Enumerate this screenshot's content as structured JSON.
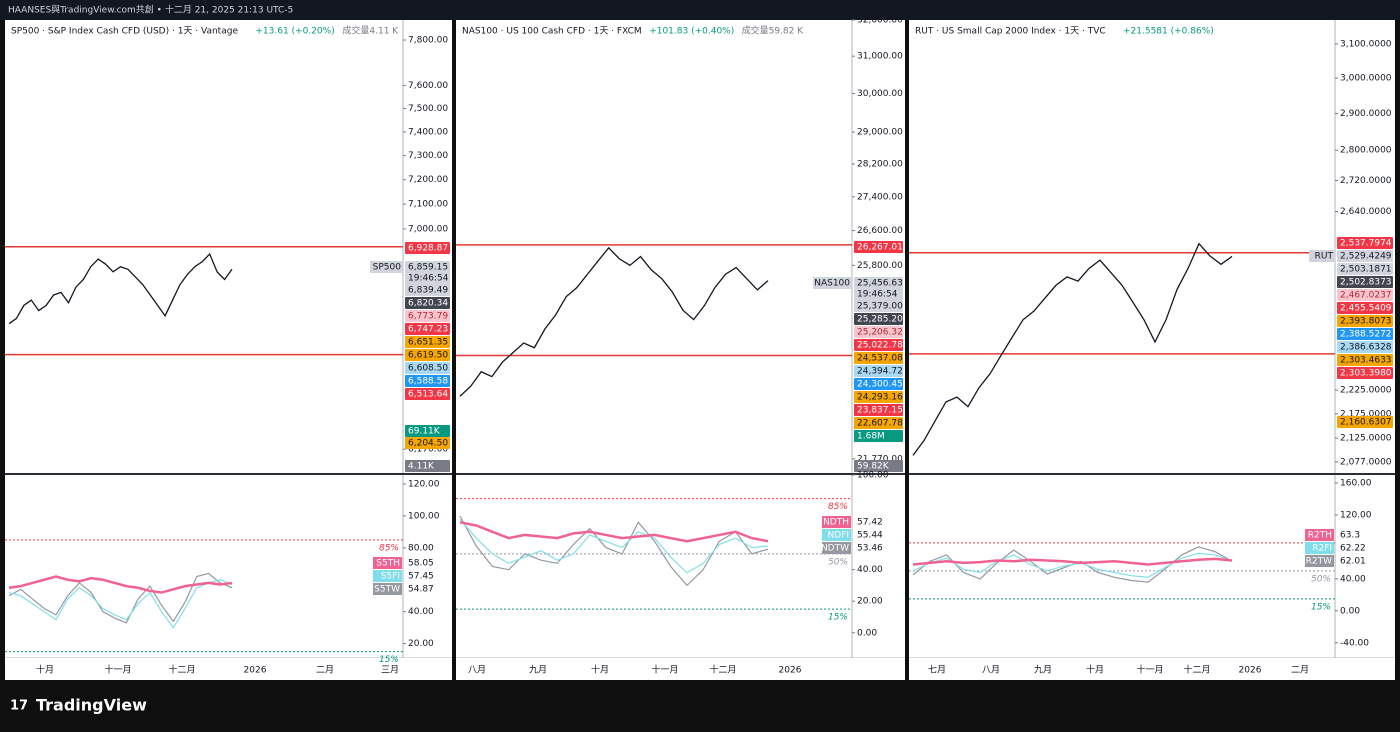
{
  "top_bar": "HAANSES與TradingView.com共創 • 十二月 21, 2025 21:13 UTC-5",
  "footer": "TradingView",
  "panels": [
    {
      "symbol": "SP500 · S&P Index Cash CFD (USD) · 1天 · Vantage",
      "change": "+13.61 (+0.20%)",
      "volume": "成交量4.11 K",
      "tag": "SP500",
      "log_scale": true,
      "ylim": [
        6090,
        7890
      ],
      "yticks": [
        {
          "value": 7800,
          "label": "7,800.00"
        },
        {
          "value": 7600,
          "label": "7,600.00"
        },
        {
          "value": 7500,
          "label": "7,500.00"
        },
        {
          "value": 7400,
          "label": "7,400.00"
        },
        {
          "value": 7300,
          "label": "7,300.00"
        },
        {
          "value": 7200,
          "label": "7,200.00"
        },
        {
          "value": 7100,
          "label": "7,100.00"
        },
        {
          "value": 7000,
          "label": "7,000.00"
        },
        {
          "value": 6170,
          "label": "6,170.00"
        }
      ],
      "levels": [
        6928.87,
        6513.64
      ],
      "close": [
        6630,
        6650,
        6700,
        6720,
        6680,
        6700,
        6740,
        6750,
        6710,
        6770,
        6800,
        6850,
        6880,
        6860,
        6830,
        6850,
        6840,
        6810,
        6780,
        6740,
        6700,
        6660,
        6720,
        6780,
        6820,
        6850,
        6870,
        6900,
        6830,
        6800,
        6840
      ],
      "price_labels": [
        {
          "value": 6928.87,
          "label": "6,928.87",
          "bg": "#f23645",
          "fg": "#fff"
        },
        {
          "value": 6859.15,
          "label": "6,859.15",
          "bg": "#d1d4dc",
          "fg": "#131722"
        },
        {
          "label": "19:46:54",
          "bg": "#d1d4dc",
          "fg": "#131722"
        },
        {
          "value": 6839.49,
          "label": "6,839.49",
          "bg": "#d1d4dc",
          "fg": "#131722"
        },
        {
          "value": 6820.34,
          "label": "6,820.34",
          "bg": "#434651",
          "fg": "#fff"
        },
        {
          "value": 6773.79,
          "label": "6,773.79",
          "bg": "#f8c5cf",
          "fg": "#b22833"
        },
        {
          "value": 6747.23,
          "label": "6,747.23",
          "bg": "#f23645",
          "fg": "#fff"
        },
        {
          "value": 6651.35,
          "label": "6,651.35",
          "bg": "#f7a600",
          "fg": "#131722"
        },
        {
          "value": 6619.5,
          "label": "6,619.50",
          "bg": "#f7a600",
          "fg": "#131722"
        },
        {
          "value": 6608.5,
          "label": "6,608.50",
          "bg": "#a9d8f2",
          "fg": "#131722"
        },
        {
          "value": 6588.58,
          "label": "6,588.58",
          "bg": "#2196f3",
          "fg": "#fff"
        },
        {
          "value": 6513.64,
          "label": "6,513.64",
          "bg": "#f23645",
          "fg": "#fff"
        },
        {
          "label": "69.11K",
          "bg": "#089981",
          "fg": "#fff"
        },
        {
          "value": 6204.5,
          "label": "6,204.50",
          "bg": "#f7a600",
          "fg": "#131722"
        },
        {
          "label": "4.11K",
          "bg": "#787b86",
          "fg": "#fff"
        }
      ],
      "osc_ylim": [
        11,
        125.6
      ],
      "osc_ticks": [
        {
          "value": 120,
          "label": "120.00"
        },
        {
          "value": 100,
          "label": "100.00"
        },
        {
          "value": 80,
          "label": "80.00"
        },
        {
          "value": 40,
          "label": "40.00"
        },
        {
          "value": 20,
          "label": "20.00"
        }
      ],
      "osc_levels": [
        {
          "value": 85,
          "label": "85%",
          "color": "#f23645"
        },
        {
          "value": 15,
          "label": "15%",
          "color": "#089981"
        }
      ],
      "osc_series": [
        {
          "name": "S5TH",
          "value": 58.05,
          "color": "#f06292",
          "values": [
            55,
            56,
            58,
            60,
            62,
            60,
            59,
            61,
            60,
            58,
            56,
            55,
            53,
            52,
            54,
            56,
            57,
            58,
            57,
            58
          ]
        },
        {
          "name": "S5FI",
          "value": 57.45,
          "color": "#80deea",
          "values": [
            52,
            50,
            45,
            40,
            35,
            48,
            55,
            50,
            42,
            38,
            35,
            45,
            52,
            40,
            30,
            42,
            55,
            58,
            60,
            57
          ]
        },
        {
          "name": "S5TW",
          "value": 54.87,
          "color": "#9598a1",
          "values": [
            50,
            54,
            48,
            42,
            38,
            50,
            58,
            52,
            40,
            36,
            33,
            48,
            56,
            44,
            34,
            46,
            62,
            64,
            58,
            55
          ]
        }
      ],
      "months": [
        "十月",
        "十一月",
        "十二月",
        "2026",
        "二月",
        "三月"
      ]
    },
    {
      "symbol": "NAS100 · US 100 Cash CFD · 1天 · FXCM",
      "change": "+101.83 (+0.40%)",
      "volume": "成交量59.82 K",
      "tag": "NAS100",
      "log_scale": true,
      "ylim": [
        21520,
        32000
      ],
      "yticks": [
        {
          "value": 32000,
          "label": "32,000.00"
        },
        {
          "value": 31000,
          "label": "31,000.00"
        },
        {
          "value": 30000,
          "label": "30,000.00"
        },
        {
          "value": 29000,
          "label": "29,000.00"
        },
        {
          "value": 28200,
          "label": "28,200.00"
        },
        {
          "value": 27400,
          "label": "27,400.00"
        },
        {
          "value": 26600,
          "label": "26,600.00"
        },
        {
          "value": 25800,
          "label": "25,800.00"
        },
        {
          "value": 21770,
          "label": "21,770.00"
        }
      ],
      "levels": [
        26267.01,
        23837.15
      ],
      "close": [
        23000,
        23200,
        23500,
        23400,
        23700,
        23900,
        24100,
        24000,
        24400,
        24700,
        25100,
        25300,
        25600,
        25900,
        26200,
        25950,
        25800,
        26000,
        25700,
        25500,
        25200,
        24800,
        24600,
        24900,
        25300,
        25600,
        25750,
        25500,
        25250,
        25456
      ],
      "price_labels": [
        {
          "value": 26267.01,
          "label": "26,267.01",
          "bg": "#f23645",
          "fg": "#fff"
        },
        {
          "value": 25456.63,
          "label": "25,456.63",
          "bg": "#d1d4dc",
          "fg": "#131722"
        },
        {
          "label": "19:46:54",
          "bg": "#d1d4dc",
          "fg": "#131722"
        },
        {
          "value": 25379,
          "label": "25,379.00",
          "bg": "#d1d4dc",
          "fg": "#131722"
        },
        {
          "value": 25285.2,
          "label": "25,285.20",
          "bg": "#434651",
          "fg": "#fff"
        },
        {
          "value": 25206.32,
          "label": "25,206.32",
          "bg": "#f8c5cf",
          "fg": "#b22833"
        },
        {
          "value": 25022.78,
          "label": "25,022.78",
          "bg": "#f23645",
          "fg": "#fff"
        },
        {
          "value": 24537.08,
          "label": "24,537.08",
          "bg": "#f7a600",
          "fg": "#131722"
        },
        {
          "value": 24394.72,
          "label": "24,394.72",
          "bg": "#a9d8f2",
          "fg": "#131722"
        },
        {
          "value": 24300.45,
          "label": "24,300.45",
          "bg": "#2196f3",
          "fg": "#fff"
        },
        {
          "value": 24293.16,
          "label": "24,293.16",
          "bg": "#f7a600",
          "fg": "#131722"
        },
        {
          "value": 23837.15,
          "label": "23,837.15",
          "bg": "#f23645",
          "fg": "#fff"
        },
        {
          "value": 22607.78,
          "label": "22,607.78",
          "bg": "#f7a600",
          "fg": "#131722"
        },
        {
          "label": "1.68M",
          "bg": "#089981",
          "fg": "#fff"
        },
        {
          "label": "59.82K",
          "bg": "#787b86",
          "fg": "#fff"
        }
      ],
      "osc_ylim": [
        -16,
        100
      ],
      "osc_ticks": [
        {
          "value": 100,
          "label": "100.00"
        },
        {
          "value": 40,
          "label": "40.00"
        },
        {
          "value": 20,
          "label": "20.00"
        },
        {
          "value": 0,
          "label": "0.00"
        }
      ],
      "osc_levels": [
        {
          "value": 85,
          "label": "85%",
          "color": "#f23645"
        },
        {
          "value": 50,
          "label": "50%",
          "color": "#9598a1"
        },
        {
          "value": 15,
          "label": "15%",
          "color": "#089981"
        }
      ],
      "osc_series": [
        {
          "name": "NDTH",
          "value": 57.42,
          "color": "#f06292",
          "values": [
            70,
            68,
            64,
            60,
            62,
            61,
            60,
            63,
            64,
            62,
            60,
            61,
            62,
            60,
            58,
            60,
            62,
            64,
            60,
            58
          ]
        },
        {
          "name": "NDFI",
          "value": 55.44,
          "color": "#80deea",
          "values": [
            72,
            60,
            50,
            44,
            48,
            52,
            46,
            50,
            62,
            58,
            54,
            64,
            60,
            48,
            38,
            44,
            56,
            60,
            54,
            55
          ]
        },
        {
          "name": "NDTW",
          "value": 53.46,
          "color": "#9598a1",
          "values": [
            74,
            55,
            42,
            40,
            50,
            46,
            44,
            56,
            66,
            54,
            50,
            70,
            58,
            42,
            30,
            40,
            58,
            64,
            50,
            53
          ]
        }
      ],
      "months": [
        "八月",
        "九月",
        "十月",
        "十一月",
        "十二月",
        "2026"
      ]
    },
    {
      "symbol": "RUT · US Small Cap 2000 Index · 1天 · TVC",
      "change": "+21.5581 (+0.86%)",
      "tag": "RUT",
      "log_scale": true,
      "ylim": [
        2057,
        3172
      ],
      "yticks": [
        {
          "value": 3100,
          "label": "3,100.0000"
        },
        {
          "value": 3000,
          "label": "3,000.0000"
        },
        {
          "value": 2900,
          "label": "2,900.0000"
        },
        {
          "value": 2800,
          "label": "2,800.0000"
        },
        {
          "value": 2720,
          "label": "2,720.0000"
        },
        {
          "value": 2640,
          "label": "2,640.0000"
        },
        {
          "value": 2225,
          "label": "2,225.0000"
        },
        {
          "value": 2175,
          "label": "2,175.0000"
        },
        {
          "value": 2125,
          "label": "2,125.0000"
        },
        {
          "value": 2077,
          "label": "2,077.0000"
        }
      ],
      "levels": [
        2537.7974,
        2303.398
      ],
      "close": [
        2090,
        2120,
        2160,
        2200,
        2210,
        2190,
        2230,
        2260,
        2300,
        2340,
        2380,
        2400,
        2430,
        2460,
        2480,
        2470,
        2500,
        2520,
        2490,
        2460,
        2420,
        2380,
        2330,
        2380,
        2450,
        2500,
        2560,
        2530,
        2510,
        2529
      ],
      "price_labels": [
        {
          "value": 2537.7974,
          "label": "2,537.7974",
          "bg": "#f23645",
          "fg": "#fff"
        },
        {
          "value": 2529.4249,
          "label": "2,529.4249",
          "bg": "#d1d4dc",
          "fg": "#131722"
        },
        {
          "value": 2503.1871,
          "label": "2,503.1871",
          "bg": "#d1d4dc",
          "fg": "#131722"
        },
        {
          "value": 2502.8373,
          "label": "2,502.8373",
          "bg": "#434651",
          "fg": "#fff"
        },
        {
          "value": 2467.0237,
          "label": "2,467.0237",
          "bg": "#f8c5cf",
          "fg": "#b22833"
        },
        {
          "value": 2455.5409,
          "label": "2,455.5409",
          "bg": "#f23645",
          "fg": "#fff"
        },
        {
          "value": 2393.8073,
          "label": "2,393.8073",
          "bg": "#f7a600",
          "fg": "#131722"
        },
        {
          "value": 2388.5272,
          "label": "2,388.5272",
          "bg": "#2196f3",
          "fg": "#fff"
        },
        {
          "value": 2386.6328,
          "label": "2,386.6328",
          "bg": "#a9d8f2",
          "fg": "#131722"
        },
        {
          "value": 2303.4633,
          "label": "2,303.4633",
          "bg": "#f7a600",
          "fg": "#131722"
        },
        {
          "value": 2303.398,
          "label": "2,303.3980",
          "bg": "#f23645",
          "fg": "#fff"
        },
        {
          "value": 2160.6307,
          "label": "2,160.6307",
          "bg": "#f7a600",
          "fg": "#131722"
        }
      ],
      "osc_ylim": [
        -59,
        170
      ],
      "osc_ticks": [
        {
          "value": 160,
          "label": "160.00"
        },
        {
          "value": 120,
          "label": "120.00"
        },
        {
          "value": 40,
          "label": "40.00"
        },
        {
          "value": 0,
          "label": "0.00"
        },
        {
          "value": -40,
          "label": "-40.00"
        }
      ],
      "osc_levels": [
        {
          "value": 85,
          "label": "85%",
          "color": "#f23645"
        },
        {
          "value": 50,
          "label": "50%",
          "color": "#9598a1"
        },
        {
          "value": 15,
          "label": "15%",
          "color": "#089981"
        }
      ],
      "osc_series": [
        {
          "name": "R2TH",
          "value": 63.3,
          "color": "#f06292",
          "values": [
            58,
            60,
            62,
            60,
            61,
            63,
            62,
            64,
            63,
            62,
            60,
            61,
            62,
            60,
            58,
            60,
            62,
            64,
            65,
            63
          ]
        },
        {
          "name": "R2FI",
          "value": 62.22,
          "color": "#80deea",
          "values": [
            50,
            60,
            66,
            52,
            48,
            62,
            70,
            58,
            50,
            56,
            60,
            52,
            48,
            44,
            42,
            54,
            66,
            72,
            70,
            62
          ]
        },
        {
          "name": "R2TW",
          "value": 62.01,
          "color": "#9598a1",
          "values": [
            45,
            62,
            70,
            48,
            40,
            60,
            76,
            62,
            46,
            54,
            62,
            48,
            42,
            38,
            36,
            52,
            70,
            80,
            74,
            62
          ]
        }
      ],
      "months": [
        "七月",
        "八月",
        "九月",
        "十月",
        "十一月",
        "十二月",
        "2026",
        "二月"
      ]
    }
  ]
}
